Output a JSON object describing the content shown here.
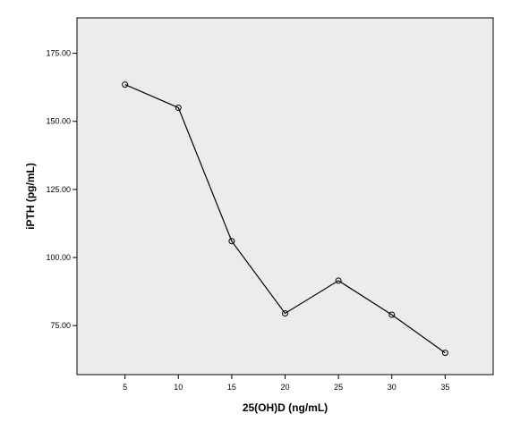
{
  "chart_data": {
    "type": "line",
    "title": "",
    "xlabel": "25(OH)D (ng/mL)",
    "ylabel": "iPTH (pg/mL)",
    "x": [
      5,
      10,
      15,
      20,
      25,
      30,
      35
    ],
    "series": [
      {
        "values": [
          163.5,
          155,
          106,
          79.5,
          91.5,
          79,
          65
        ]
      }
    ],
    "xticks": [
      "5",
      "10",
      "15",
      "20",
      "25",
      "30",
      "35"
    ],
    "yticks": [
      "75.00",
      "100.00",
      "125.00",
      "150.00",
      "175.00"
    ],
    "xlim": [
      0.5,
      39.5
    ],
    "ylim": [
      57,
      188
    ],
    "grid": false,
    "legend": "none",
    "colors": {
      "plot_background": "#ececec",
      "line": "#000000",
      "marker": "#000000"
    },
    "marker": "open-circle"
  }
}
